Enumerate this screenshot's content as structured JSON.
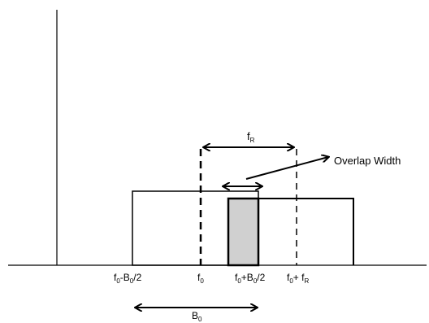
{
  "labels": {
    "overlap_width": "Overlap Width",
    "f0_minus_half_b0": {
      "base": "f",
      "sub0": "0",
      "mid": "-B",
      "sub1": "0",
      "tail": "/2"
    },
    "f0": {
      "base": "f",
      "sub": "0"
    },
    "f0_plus_half_b0": {
      "base": "f",
      "sub0": "0",
      "mid": "+B",
      "sub1": "0",
      "tail": "/2"
    },
    "f0_plus_fr": {
      "base": "f",
      "sub0": "0",
      "mid": "+ f",
      "sub1": "R"
    },
    "fr_top": {
      "base": "f",
      "sub": "R"
    },
    "b0_bottom": {
      "base": "B",
      "sub": "0"
    }
  },
  "colors": {
    "stroke": "#000000",
    "overlap_fill": "#d0d0d0",
    "background": "#ffffff"
  }
}
